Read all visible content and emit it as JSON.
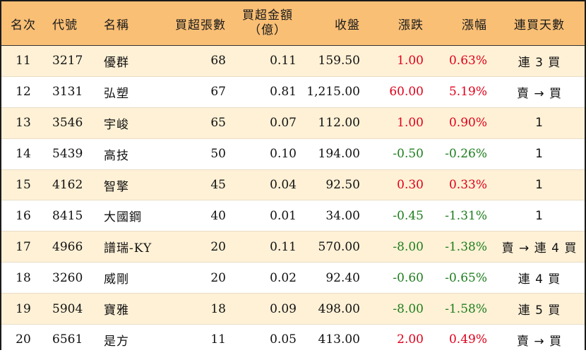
{
  "colors": {
    "header_bg": "#f9bf75",
    "odd_row_bg": "#fff1d6",
    "even_row_bg": "#ffffff",
    "up": "#e0001a",
    "down": "#1e7d1e",
    "border": "#1a1a1a"
  },
  "headers": {
    "rank": "名次",
    "code": "代號",
    "name": "名稱",
    "net_buy_lots": "買超張數",
    "net_buy_amount_line1": "買超金額",
    "net_buy_amount_line2": "（億）",
    "close": "收盤",
    "change": "漲跌",
    "change_pct": "漲幅",
    "consecutive_days": "連買天數"
  },
  "rows": [
    {
      "rank": "11",
      "code": "3217",
      "name": "優群",
      "lots": "68",
      "amount": "0.11",
      "close": "159.50",
      "change": "1.00",
      "pct": "0.63%",
      "days": "連 3 買",
      "trend": "up"
    },
    {
      "rank": "12",
      "code": "3131",
      "name": "弘塑",
      "lots": "67",
      "amount": "0.81",
      "close": "1,215.00",
      "change": "60.00",
      "pct": "5.19%",
      "days": "賣 → 買",
      "trend": "up"
    },
    {
      "rank": "13",
      "code": "3546",
      "name": "宇峻",
      "lots": "65",
      "amount": "0.07",
      "close": "112.00",
      "change": "1.00",
      "pct": "0.90%",
      "days": "1",
      "trend": "up"
    },
    {
      "rank": "14",
      "code": "5439",
      "name": "高技",
      "lots": "50",
      "amount": "0.10",
      "close": "194.00",
      "change": "-0.50",
      "pct": "-0.26%",
      "days": "1",
      "trend": "down"
    },
    {
      "rank": "15",
      "code": "4162",
      "name": "智擎",
      "lots": "45",
      "amount": "0.04",
      "close": "92.50",
      "change": "0.30",
      "pct": "0.33%",
      "days": "1",
      "trend": "up"
    },
    {
      "rank": "16",
      "code": "8415",
      "name": "大國鋼",
      "lots": "40",
      "amount": "0.01",
      "close": "34.00",
      "change": "-0.45",
      "pct": "-1.31%",
      "days": "1",
      "trend": "down"
    },
    {
      "rank": "17",
      "code": "4966",
      "name": "譜瑞-KY",
      "lots": "20",
      "amount": "0.11",
      "close": "570.00",
      "change": "-8.00",
      "pct": "-1.38%",
      "days": "賣 → 連 4 買",
      "trend": "down"
    },
    {
      "rank": "18",
      "code": "3260",
      "name": "威剛",
      "lots": "20",
      "amount": "0.02",
      "close": "92.40",
      "change": "-0.60",
      "pct": "-0.65%",
      "days": "連 4 買",
      "trend": "down"
    },
    {
      "rank": "19",
      "code": "5904",
      "name": "寶雅",
      "lots": "18",
      "amount": "0.09",
      "close": "498.00",
      "change": "-8.00",
      "pct": "-1.58%",
      "days": "連 5 買",
      "trend": "down"
    },
    {
      "rank": "20",
      "code": "6561",
      "name": "是方",
      "lots": "11",
      "amount": "0.05",
      "close": "413.00",
      "change": "2.00",
      "pct": "0.49%",
      "days": "賣 → 買",
      "trend": "up"
    }
  ]
}
